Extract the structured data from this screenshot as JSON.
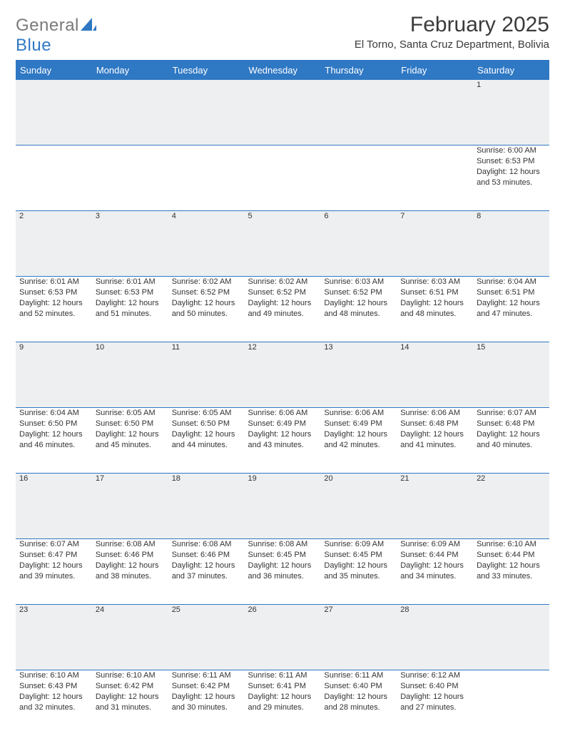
{
  "brand": {
    "word1": "General",
    "word2": "Blue",
    "logo_color": "#2f78c4",
    "text_color": "#7a7a7a"
  },
  "header": {
    "title": "February 2025",
    "subtitle": "El Torno, Santa Cruz Department, Bolivia"
  },
  "calendar": {
    "columns": [
      "Sunday",
      "Monday",
      "Tuesday",
      "Wednesday",
      "Thursday",
      "Friday",
      "Saturday"
    ],
    "header_bg": "#2f78c4",
    "header_fg": "#ffffff",
    "rule_color": "#2f78c4",
    "daynum_bg": "#edeff1",
    "cell_fontsize": 11,
    "weeks": [
      [
        null,
        null,
        null,
        null,
        null,
        null,
        {
          "n": "1",
          "sunrise": "6:00 AM",
          "sunset": "6:53 PM",
          "daylight": "12 hours and 53 minutes."
        }
      ],
      [
        {
          "n": "2",
          "sunrise": "6:01 AM",
          "sunset": "6:53 PM",
          "daylight": "12 hours and 52 minutes."
        },
        {
          "n": "3",
          "sunrise": "6:01 AM",
          "sunset": "6:53 PM",
          "daylight": "12 hours and 51 minutes."
        },
        {
          "n": "4",
          "sunrise": "6:02 AM",
          "sunset": "6:52 PM",
          "daylight": "12 hours and 50 minutes."
        },
        {
          "n": "5",
          "sunrise": "6:02 AM",
          "sunset": "6:52 PM",
          "daylight": "12 hours and 49 minutes."
        },
        {
          "n": "6",
          "sunrise": "6:03 AM",
          "sunset": "6:52 PM",
          "daylight": "12 hours and 48 minutes."
        },
        {
          "n": "7",
          "sunrise": "6:03 AM",
          "sunset": "6:51 PM",
          "daylight": "12 hours and 48 minutes."
        },
        {
          "n": "8",
          "sunrise": "6:04 AM",
          "sunset": "6:51 PM",
          "daylight": "12 hours and 47 minutes."
        }
      ],
      [
        {
          "n": "9",
          "sunrise": "6:04 AM",
          "sunset": "6:50 PM",
          "daylight": "12 hours and 46 minutes."
        },
        {
          "n": "10",
          "sunrise": "6:05 AM",
          "sunset": "6:50 PM",
          "daylight": "12 hours and 45 minutes."
        },
        {
          "n": "11",
          "sunrise": "6:05 AM",
          "sunset": "6:50 PM",
          "daylight": "12 hours and 44 minutes."
        },
        {
          "n": "12",
          "sunrise": "6:06 AM",
          "sunset": "6:49 PM",
          "daylight": "12 hours and 43 minutes."
        },
        {
          "n": "13",
          "sunrise": "6:06 AM",
          "sunset": "6:49 PM",
          "daylight": "12 hours and 42 minutes."
        },
        {
          "n": "14",
          "sunrise": "6:06 AM",
          "sunset": "6:48 PM",
          "daylight": "12 hours and 41 minutes."
        },
        {
          "n": "15",
          "sunrise": "6:07 AM",
          "sunset": "6:48 PM",
          "daylight": "12 hours and 40 minutes."
        }
      ],
      [
        {
          "n": "16",
          "sunrise": "6:07 AM",
          "sunset": "6:47 PM",
          "daylight": "12 hours and 39 minutes."
        },
        {
          "n": "17",
          "sunrise": "6:08 AM",
          "sunset": "6:46 PM",
          "daylight": "12 hours and 38 minutes."
        },
        {
          "n": "18",
          "sunrise": "6:08 AM",
          "sunset": "6:46 PM",
          "daylight": "12 hours and 37 minutes."
        },
        {
          "n": "19",
          "sunrise": "6:08 AM",
          "sunset": "6:45 PM",
          "daylight": "12 hours and 36 minutes."
        },
        {
          "n": "20",
          "sunrise": "6:09 AM",
          "sunset": "6:45 PM",
          "daylight": "12 hours and 35 minutes."
        },
        {
          "n": "21",
          "sunrise": "6:09 AM",
          "sunset": "6:44 PM",
          "daylight": "12 hours and 34 minutes."
        },
        {
          "n": "22",
          "sunrise": "6:10 AM",
          "sunset": "6:44 PM",
          "daylight": "12 hours and 33 minutes."
        }
      ],
      [
        {
          "n": "23",
          "sunrise": "6:10 AM",
          "sunset": "6:43 PM",
          "daylight": "12 hours and 32 minutes."
        },
        {
          "n": "24",
          "sunrise": "6:10 AM",
          "sunset": "6:42 PM",
          "daylight": "12 hours and 31 minutes."
        },
        {
          "n": "25",
          "sunrise": "6:11 AM",
          "sunset": "6:42 PM",
          "daylight": "12 hours and 30 minutes."
        },
        {
          "n": "26",
          "sunrise": "6:11 AM",
          "sunset": "6:41 PM",
          "daylight": "12 hours and 29 minutes."
        },
        {
          "n": "27",
          "sunrise": "6:11 AM",
          "sunset": "6:40 PM",
          "daylight": "12 hours and 28 minutes."
        },
        {
          "n": "28",
          "sunrise": "6:12 AM",
          "sunset": "6:40 PM",
          "daylight": "12 hours and 27 minutes."
        },
        null
      ]
    ],
    "labels": {
      "sunrise": "Sunrise:",
      "sunset": "Sunset:",
      "daylight": "Daylight:"
    }
  }
}
